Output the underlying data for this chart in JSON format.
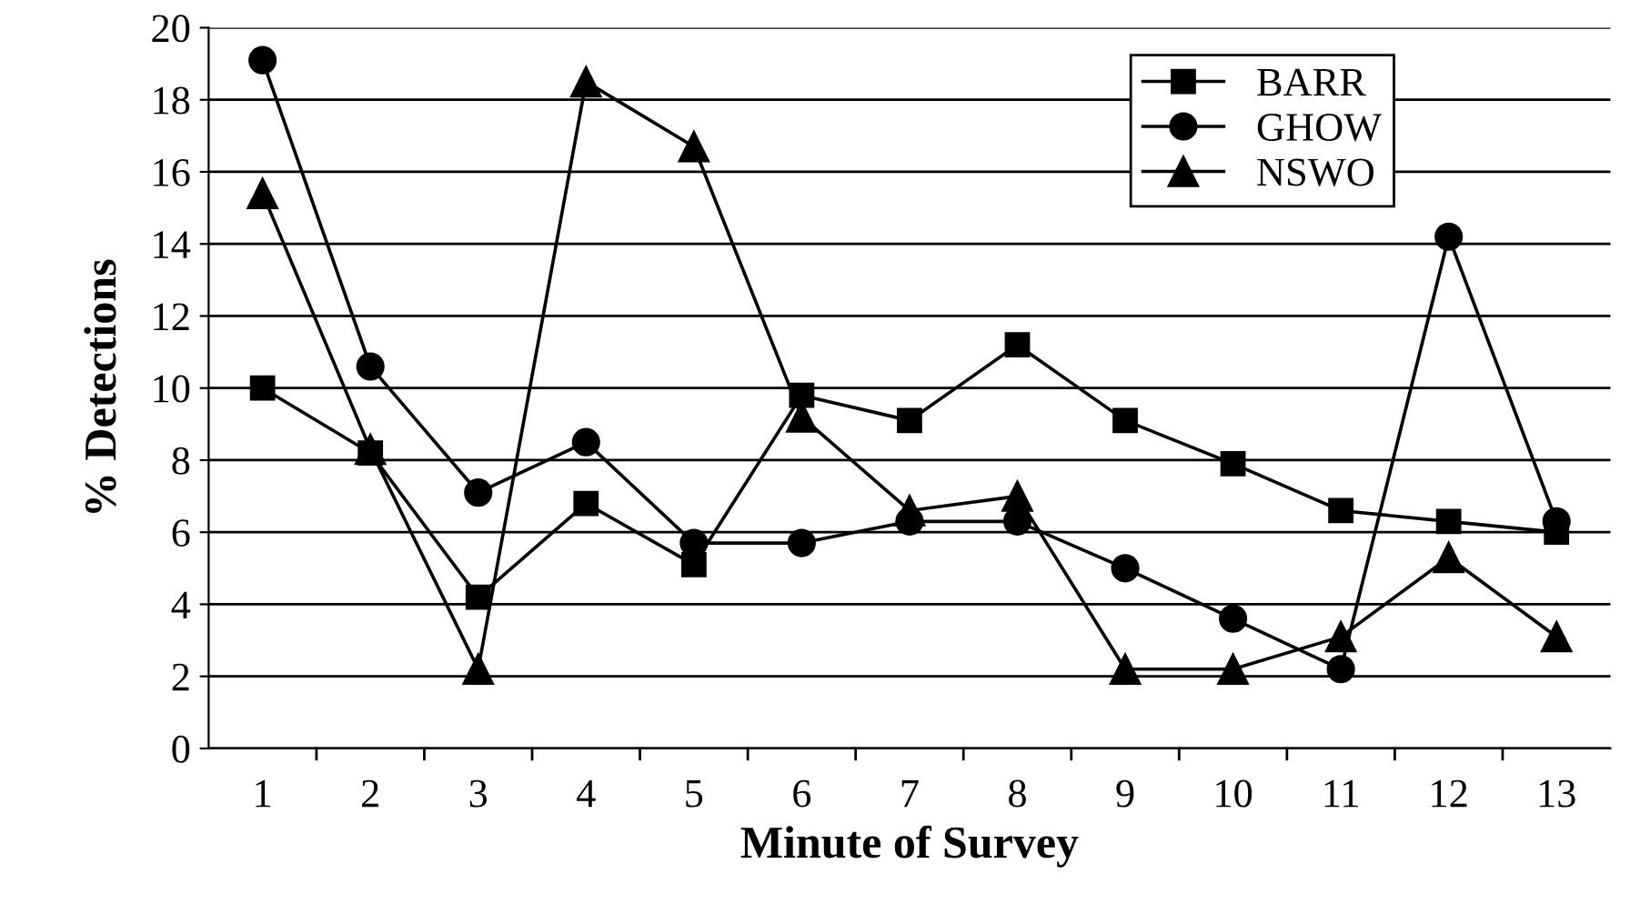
{
  "chart_data": {
    "type": "line",
    "xlabel": "Minute of Survey",
    "ylabel": "% Detections",
    "categories": [
      "1",
      "2",
      "3",
      "4",
      "5",
      "6",
      "7",
      "8",
      "9",
      "10",
      "11",
      "12",
      "13"
    ],
    "ylim": [
      0,
      20
    ],
    "yticks": [
      0,
      2,
      4,
      6,
      8,
      10,
      12,
      14,
      16,
      18,
      20
    ],
    "grid": "y",
    "legend": "top right",
    "series": [
      {
        "name": "BARR",
        "color": "#000000",
        "marker": "square",
        "values": [
          10,
          8.2,
          4.2,
          6.8,
          5.1,
          9.8,
          9.1,
          11.2,
          9.1,
          7.9,
          6.6,
          6.3,
          6.0
        ]
      },
      {
        "name": "GHOW",
        "color": "#000000",
        "marker": "circle",
        "values": [
          19.1,
          10.6,
          7.1,
          8.5,
          5.7,
          5.7,
          6.3,
          6.3,
          5.0,
          3.6,
          2.2,
          14.2,
          6.3
        ]
      },
      {
        "name": "NSWO",
        "color": "#000000",
        "marker": "triangle",
        "values": [
          15.4,
          8.3,
          2.2,
          18.5,
          16.7,
          9.2,
          6.6,
          7.0,
          2.2,
          2.2,
          3.1,
          5.3,
          3.1
        ]
      }
    ]
  }
}
